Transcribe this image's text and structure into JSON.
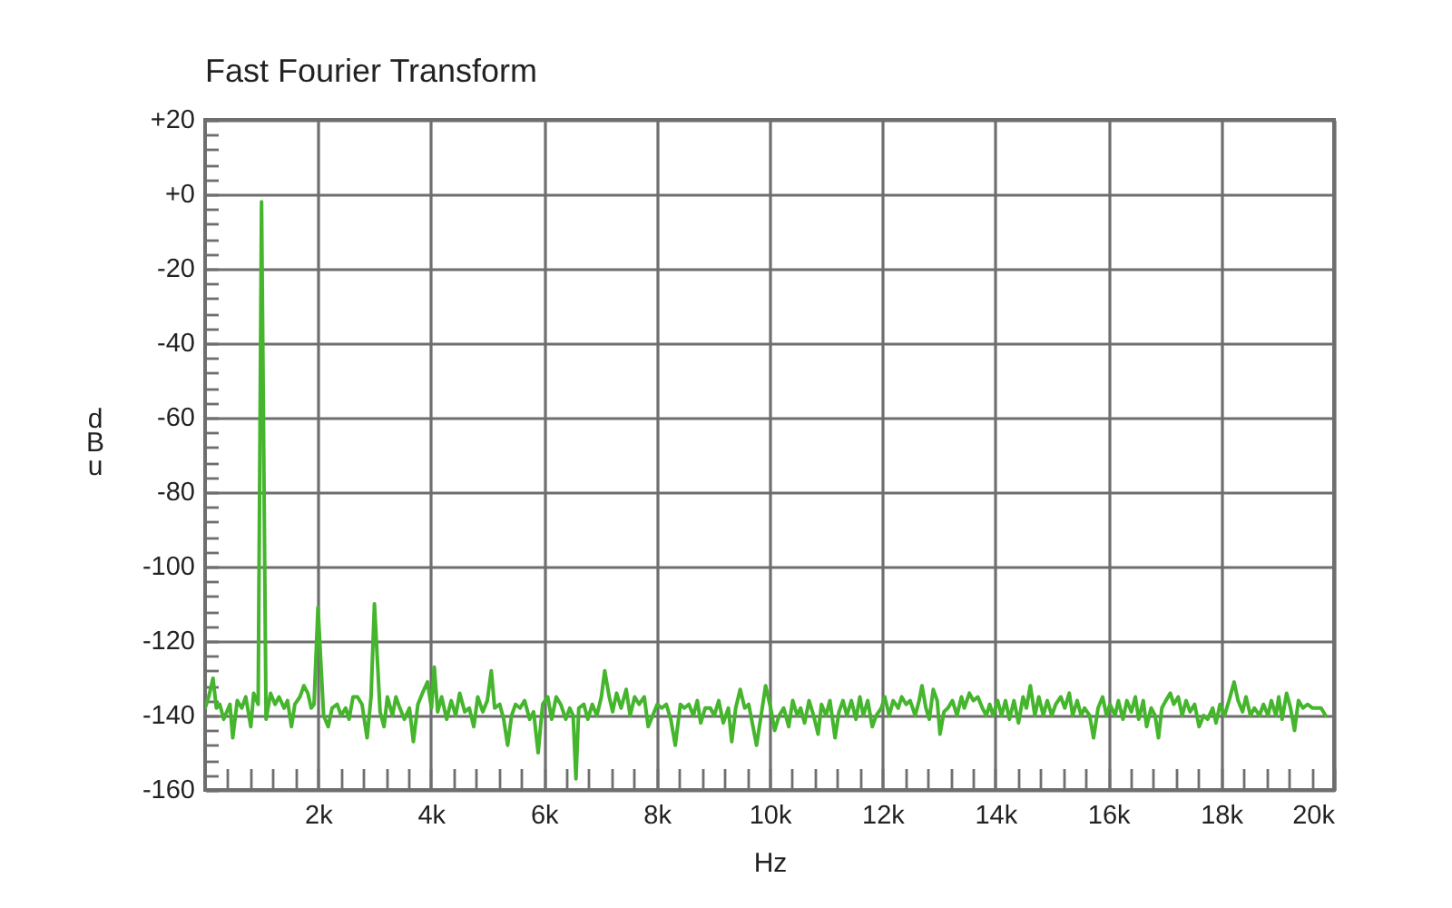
{
  "chart_data": {
    "type": "line",
    "title": "Fast Fourier Transform",
    "xlabel": "Hz",
    "ylabel": "dBu",
    "grid": true,
    "xlim": [
      0,
      20000
    ],
    "ylim": [
      -160,
      20
    ],
    "xticks": [
      {
        "value": 400,
        "label": null
      },
      {
        "value": 800,
        "label": null
      },
      {
        "value": 1200,
        "label": null
      },
      {
        "value": 1600,
        "label": null
      },
      {
        "value": 2000,
        "label": "2k"
      },
      {
        "value": 2400,
        "label": null
      },
      {
        "value": 2800,
        "label": null
      },
      {
        "value": 3200,
        "label": null
      },
      {
        "value": 3600,
        "label": null
      },
      {
        "value": 4000,
        "label": "4k"
      },
      {
        "value": 4400,
        "label": null
      },
      {
        "value": 4800,
        "label": null
      },
      {
        "value": 5200,
        "label": null
      },
      {
        "value": 5600,
        "label": null
      },
      {
        "value": 6000,
        "label": "6k"
      },
      {
        "value": 6400,
        "label": null
      },
      {
        "value": 6800,
        "label": null
      },
      {
        "value": 7200,
        "label": null
      },
      {
        "value": 7600,
        "label": null
      },
      {
        "value": 8000,
        "label": "8k"
      },
      {
        "value": 8400,
        "label": null
      },
      {
        "value": 8800,
        "label": null
      },
      {
        "value": 9200,
        "label": null
      },
      {
        "value": 9600,
        "label": null
      },
      {
        "value": 10000,
        "label": "10k"
      },
      {
        "value": 10400,
        "label": null
      },
      {
        "value": 10800,
        "label": null
      },
      {
        "value": 11200,
        "label": null
      },
      {
        "value": 11600,
        "label": null
      },
      {
        "value": 12000,
        "label": "12k"
      },
      {
        "value": 12400,
        "label": null
      },
      {
        "value": 12800,
        "label": null
      },
      {
        "value": 13200,
        "label": null
      },
      {
        "value": 13600,
        "label": null
      },
      {
        "value": 14000,
        "label": "14k"
      },
      {
        "value": 14400,
        "label": null
      },
      {
        "value": 14800,
        "label": null
      },
      {
        "value": 15200,
        "label": null
      },
      {
        "value": 15600,
        "label": null
      },
      {
        "value": 16000,
        "label": "16k"
      },
      {
        "value": 16400,
        "label": null
      },
      {
        "value": 16800,
        "label": null
      },
      {
        "value": 17200,
        "label": null
      },
      {
        "value": 17600,
        "label": null
      },
      {
        "value": 18000,
        "label": "18k"
      },
      {
        "value": 18400,
        "label": null
      },
      {
        "value": 18800,
        "label": null
      },
      {
        "value": 19200,
        "label": null
      },
      {
        "value": 19600,
        "label": null
      },
      {
        "value": 20000,
        "label": "20k"
      }
    ],
    "yticks": [
      -160,
      {
        "value": -156,
        "label": null
      },
      {
        "value": -152,
        "label": null
      },
      {
        "value": -148,
        "label": null
      },
      {
        "value": -144,
        "label": null
      },
      -140,
      {
        "value": -136,
        "label": null
      },
      {
        "value": -132,
        "label": null
      },
      {
        "value": -128,
        "label": null
      },
      {
        "value": -124,
        "label": null
      },
      -120,
      {
        "value": -116,
        "label": null
      },
      {
        "value": -112,
        "label": null
      },
      {
        "value": -108,
        "label": null
      },
      {
        "value": -104,
        "label": null
      },
      -100,
      {
        "value": -96,
        "label": null
      },
      {
        "value": -92,
        "label": null
      },
      {
        "value": -88,
        "label": null
      },
      {
        "value": -84,
        "label": null
      },
      -80,
      {
        "value": -76,
        "label": null
      },
      {
        "value": -72,
        "label": null
      },
      {
        "value": -68,
        "label": null
      },
      {
        "value": -64,
        "label": null
      },
      -60,
      {
        "value": -56,
        "label": null
      },
      {
        "value": -52,
        "label": null
      },
      {
        "value": -48,
        "label": null
      },
      {
        "value": -44,
        "label": null
      },
      -40,
      {
        "value": -36,
        "label": null
      },
      {
        "value": -32,
        "label": null
      },
      {
        "value": -28,
        "label": null
      },
      {
        "value": -24,
        "label": null
      },
      -20,
      {
        "value": -16,
        "label": null
      },
      {
        "value": -12,
        "label": null
      },
      {
        "value": -8,
        "label": null
      },
      {
        "value": -4,
        "label": null
      },
      {
        "value": 0,
        "label": "+0"
      },
      {
        "value": 4,
        "label": null
      },
      {
        "value": 8,
        "label": null
      },
      {
        "value": 12,
        "label": null
      },
      {
        "value": 16,
        "label": null
      },
      {
        "value": 20,
        "label": "+20"
      }
    ],
    "x": [
      0,
      64,
      140,
      200,
      260,
      330,
      440,
      490,
      570,
      650,
      720,
      810,
      860,
      940,
      1000,
      1080,
      1160,
      1240,
      1310,
      1400,
      1460,
      1530,
      1590,
      1680,
      1750,
      1820,
      1880,
      1930,
      2000,
      2100,
      2180,
      2250,
      2340,
      2410,
      2490,
      2550,
      2620,
      2700,
      2780,
      2870,
      2940,
      3000,
      3100,
      3170,
      3230,
      3320,
      3380,
      3450,
      3530,
      3620,
      3690,
      3770,
      3850,
      3940,
      4010,
      4060,
      4120,
      4190,
      4280,
      4360,
      4440,
      4510,
      4600,
      4680,
      4760,
      4830,
      4920,
      5000,
      5070,
      5130,
      5220,
      5290,
      5360,
      5430,
      5500,
      5580,
      5660,
      5750,
      5820,
      5900,
      5980,
      6070,
      6140,
      6220,
      6300,
      6390,
      6460,
      6520,
      6570,
      6620,
      6710,
      6780,
      6860,
      6940,
      7020,
      7080,
      7160,
      7220,
      7290,
      7370,
      7460,
      7530,
      7610,
      7690,
      7780,
      7850,
      7930,
      8010,
      8090,
      8170,
      8250,
      8330,
      8420,
      8490,
      8570,
      8650,
      8720,
      8780,
      8860,
      8950,
      9020,
      9100,
      9180,
      9270,
      9330,
      9400,
      9480,
      9560,
      9630,
      9770,
      9930,
      10020,
      10090,
      10170,
      10250,
      10340,
      10410,
      10490,
      10550,
      10620,
      10700,
      10780,
      10860,
      10920,
      11000,
      11070,
      11160,
      11230,
      11300,
      11370,
      11450,
      11530,
      11600,
      11660,
      11740,
      11820,
      11890,
      11980,
      12040,
      12120,
      12190,
      12280,
      12340,
      12420,
      12490,
      12580,
      12650,
      12700,
      12770,
      12830,
      12900,
      12970,
      13020,
      13090,
      13160,
      13240,
      13320,
      13400,
      13450,
      13540,
      13610,
      13690,
      13770,
      13840,
      13900,
      13960,
      14040,
      14110,
      14180,
      14250,
      14330,
      14410,
      14490,
      14550,
      14620,
      14700,
      14770,
      14850,
      14920,
      15000,
      15070,
      15160,
      15230,
      15310,
      15370,
      15450,
      15520,
      15580,
      15670,
      15740,
      15820,
      15900,
      15970,
      16030,
      16120,
      16180,
      16260,
      16330,
      16410,
      16480,
      16540,
      16620,
      16680,
      16760,
      16830,
      16890,
      16950,
      17020,
      17100,
      17160,
      17240,
      17310,
      17380,
      17450,
      17530,
      17610,
      17690,
      17760,
      17850,
      17910,
      17980,
      18060,
      18140,
      18230,
      18300,
      18380,
      18440,
      18520,
      18590,
      18680,
      18750,
      18830,
      18890,
      18970,
      19020,
      19080,
      19160,
      19230,
      19300,
      19370,
      19450,
      19530,
      19620,
      19690,
      19770,
      19850
    ],
    "series": [
      {
        "color": "#44b52c",
        "values": [
          -138,
          -135,
          -130,
          -138,
          -137,
          -141,
          -137,
          -146,
          -136,
          -138,
          -135,
          -143,
          -134,
          -137,
          -2,
          -141,
          -134,
          -137,
          -135,
          -138,
          -136,
          -143,
          -137,
          -135,
          -132,
          -134,
          -138,
          -137,
          -111,
          -140,
          -143,
          -138,
          -137,
          -140,
          -138,
          -141,
          -135,
          -135,
          -137,
          -146,
          -135,
          -110,
          -139,
          -143,
          -135,
          -140,
          -135,
          -138,
          -141,
          -138,
          -147,
          -137,
          -134,
          -131,
          -138,
          -127,
          -139,
          -135,
          -141,
          -136,
          -140,
          -134,
          -139,
          -138,
          -143,
          -135,
          -139,
          -136,
          -128,
          -138,
          -137,
          -141,
          -148,
          -140,
          -137,
          -138,
          -136,
          -141,
          -139,
          -150,
          -137,
          -135,
          -141,
          -135,
          -137,
          -141,
          -138,
          -140,
          -157,
          -138,
          -137,
          -141,
          -137,
          -140,
          -135,
          -128,
          -135,
          -139,
          -134,
          -138,
          -133,
          -140,
          -135,
          -137,
          -135,
          -143,
          -140,
          -137,
          -138,
          -137,
          -141,
          -148,
          -137,
          -138,
          -137,
          -140,
          -136,
          -142,
          -138,
          -138,
          -140,
          -136,
          -142,
          -138,
          -147,
          -138,
          -133,
          -138,
          -137,
          -148,
          -132,
          -138,
          -144,
          -140,
          -138,
          -143,
          -136,
          -140,
          -138,
          -142,
          -136,
          -140,
          -145,
          -137,
          -140,
          -136,
          -146,
          -139,
          -136,
          -140,
          -136,
          -141,
          -135,
          -140,
          -136,
          -143,
          -140,
          -138,
          -135,
          -140,
          -136,
          -138,
          -135,
          -137,
          -136,
          -140,
          -136,
          -132,
          -138,
          -141,
          -133,
          -136,
          -145,
          -139,
          -138,
          -136,
          -140,
          -135,
          -138,
          -134,
          -136,
          -135,
          -138,
          -140,
          -137,
          -140,
          -136,
          -140,
          -136,
          -141,
          -136,
          -142,
          -135,
          -138,
          -132,
          -140,
          -135,
          -140,
          -136,
          -140,
          -137,
          -135,
          -138,
          -134,
          -140,
          -136,
          -140,
          -138,
          -140,
          -146,
          -138,
          -135,
          -140,
          -137,
          -140,
          -136,
          -141,
          -136,
          -139,
          -135,
          -141,
          -136,
          -143,
          -138,
          -140,
          -146,
          -138,
          -136,
          -134,
          -137,
          -135,
          -140,
          -136,
          -139,
          -137,
          -143,
          -140,
          -141,
          -138,
          -142,
          -137,
          -140,
          -136,
          -131,
          -136,
          -139,
          -135,
          -140,
          -138,
          -140,
          -137,
          -140,
          -136,
          -140,
          -135,
          -141,
          -134,
          -138,
          -144,
          -136,
          -138,
          -137,
          -138,
          -138,
          -138,
          -140
        ]
      }
    ]
  }
}
